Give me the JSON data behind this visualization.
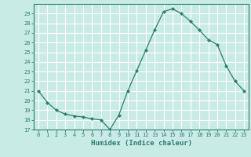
{
  "x": [
    0,
    1,
    2,
    3,
    4,
    5,
    6,
    7,
    8,
    9,
    10,
    11,
    12,
    13,
    14,
    15,
    16,
    17,
    18,
    19,
    20,
    21,
    22,
    23
  ],
  "y": [
    21.0,
    19.8,
    19.0,
    18.6,
    18.4,
    18.3,
    18.1,
    18.0,
    17.0,
    18.5,
    21.0,
    23.1,
    25.2,
    27.3,
    29.2,
    29.5,
    29.0,
    28.2,
    27.3,
    26.3,
    25.8,
    23.6,
    22.0,
    21.0
  ],
  "line_color": "#2e7d6e",
  "marker": "D",
  "marker_size": 2.0,
  "bg_color": "#c8ebe6",
  "grid_color": "#ffffff",
  "xlabel": "Humidex (Indice chaleur)",
  "ylim": [
    17,
    30
  ],
  "xlim": [
    -0.5,
    23.5
  ],
  "yticks": [
    17,
    18,
    19,
    20,
    21,
    22,
    23,
    24,
    25,
    26,
    27,
    28,
    29
  ],
  "xticks": [
    0,
    1,
    2,
    3,
    4,
    5,
    6,
    7,
    8,
    9,
    10,
    11,
    12,
    13,
    14,
    15,
    16,
    17,
    18,
    19,
    20,
    21,
    22,
    23
  ],
  "tick_color": "#2e7d6e",
  "label_color": "#2e7d6e",
  "axis_color": "#2e7d6e",
  "xlabel_fontsize": 6.5,
  "tick_fontsize": 5.0
}
